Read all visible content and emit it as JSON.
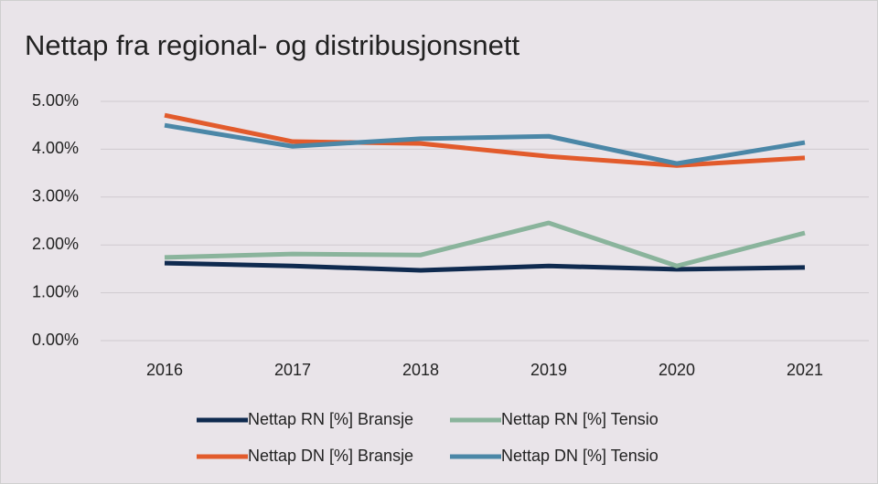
{
  "chart_data": {
    "type": "line",
    "title": "Nettap fra regional- og distribusjonsnett",
    "categories": [
      "2016",
      "2017",
      "2018",
      "2019",
      "2020",
      "2021"
    ],
    "series": [
      {
        "name": "Nettap RN [%] Bransje",
        "color": "#0f2a4f",
        "values": [
          1.62,
          1.56,
          1.47,
          1.56,
          1.49,
          1.53
        ]
      },
      {
        "name": "Nettap RN [%] Tensio",
        "color": "#8ab49c",
        "values": [
          1.74,
          1.81,
          1.79,
          2.46,
          1.56,
          2.25
        ]
      },
      {
        "name": "Nettap DN [%] Bransje",
        "color": "#e25b2c",
        "values": [
          4.71,
          4.16,
          4.12,
          3.85,
          3.66,
          3.82
        ]
      },
      {
        "name": "Nettap DN [%] Tensio",
        "color": "#4b87a7",
        "values": [
          4.5,
          4.06,
          4.22,
          4.27,
          3.7,
          4.14
        ]
      }
    ],
    "ylim": [
      0,
      5
    ],
    "yticks": [
      {
        "value": 0,
        "label": "0.00%"
      },
      {
        "value": 1,
        "label": "1.00%"
      },
      {
        "value": 2,
        "label": "2.00%"
      },
      {
        "value": 3,
        "label": "3.00%"
      },
      {
        "value": 4,
        "label": "4.00%"
      },
      {
        "value": 5,
        "label": "5.00%"
      }
    ],
    "grid": true,
    "legend": "bottom"
  }
}
